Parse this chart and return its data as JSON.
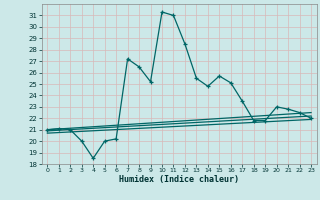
{
  "xlabel": "Humidex (Indice chaleur)",
  "bg_color": "#cce8e8",
  "grid_color": "#b0d0d0",
  "line_color": "#006666",
  "ylim": [
    18,
    32
  ],
  "xlim": [
    -0.5,
    23.5
  ],
  "yticks": [
    18,
    19,
    20,
    21,
    22,
    23,
    24,
    25,
    26,
    27,
    28,
    29,
    30,
    31
  ],
  "xticks": [
    0,
    1,
    2,
    3,
    4,
    5,
    6,
    7,
    8,
    9,
    10,
    11,
    12,
    13,
    14,
    15,
    16,
    17,
    18,
    19,
    20,
    21,
    22,
    23
  ],
  "main_x": [
    0,
    1,
    2,
    3,
    4,
    5,
    6,
    7,
    8,
    9,
    10,
    11,
    12,
    13,
    14,
    15,
    16,
    17,
    18,
    19,
    20,
    21,
    22,
    23
  ],
  "main_y": [
    21,
    21.1,
    21.0,
    20.0,
    18.5,
    20.0,
    20.2,
    27.2,
    26.5,
    25.2,
    31.3,
    31.0,
    28.5,
    25.5,
    24.8,
    25.7,
    25.1,
    23.5,
    21.8,
    21.8,
    23.0,
    22.8,
    22.5,
    22.0
  ],
  "line2_x": [
    0,
    23
  ],
  "line2_y": [
    21.0,
    22.5
  ],
  "line3_x": [
    0,
    23
  ],
  "line3_y": [
    20.9,
    22.2
  ],
  "line4_x": [
    0,
    23
  ],
  "line4_y": [
    20.7,
    21.9
  ]
}
